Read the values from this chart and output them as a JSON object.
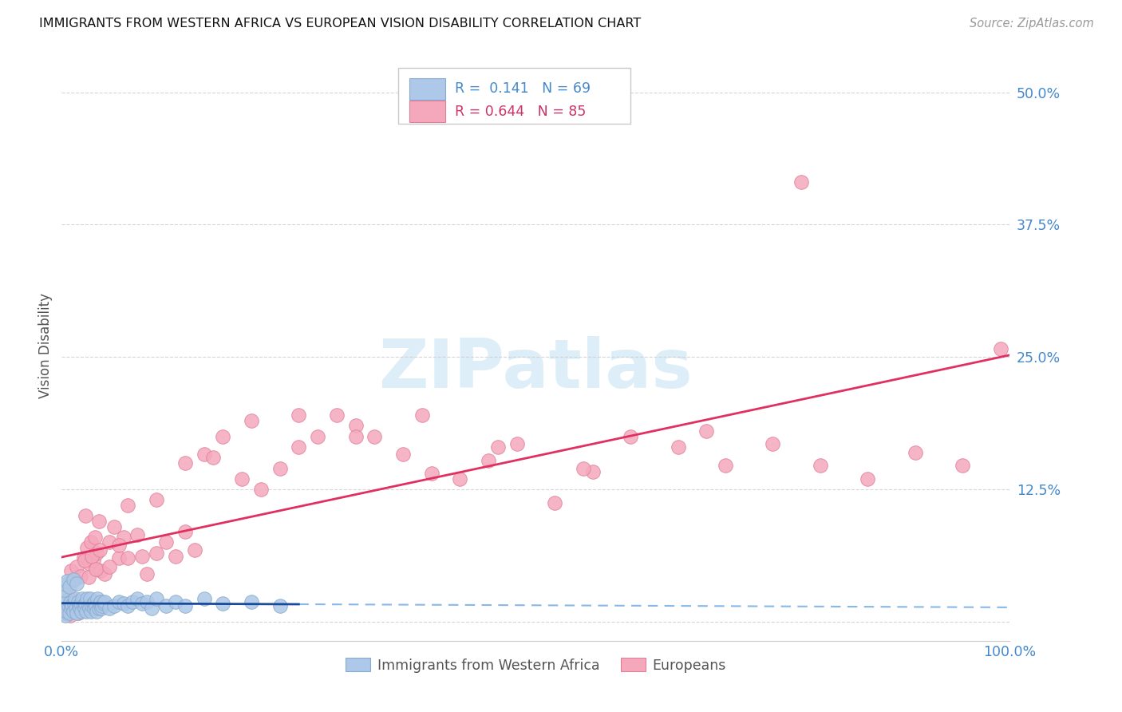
{
  "title": "IMMIGRANTS FROM WESTERN AFRICA VS EUROPEAN VISION DISABILITY CORRELATION CHART",
  "source": "Source: ZipAtlas.com",
  "ylabel": "Vision Disability",
  "xlim": [
    0.0,
    1.0
  ],
  "ylim": [
    -0.018,
    0.54
  ],
  "blue_R": 0.141,
  "blue_N": 69,
  "pink_R": 0.644,
  "pink_N": 85,
  "blue_color": "#adc8e8",
  "pink_color": "#f5a8bc",
  "blue_edge_color": "#88aacc",
  "pink_edge_color": "#e08098",
  "blue_line_color": "#1a4a9a",
  "pink_line_color": "#e03060",
  "blue_dashed_color": "#88b8e8",
  "watermark_color": "#ddeef8",
  "blue_x": [
    0.001,
    0.002,
    0.003,
    0.004,
    0.005,
    0.006,
    0.007,
    0.008,
    0.009,
    0.01,
    0.011,
    0.012,
    0.013,
    0.014,
    0.015,
    0.016,
    0.017,
    0.018,
    0.019,
    0.02,
    0.021,
    0.022,
    0.023,
    0.024,
    0.025,
    0.026,
    0.027,
    0.028,
    0.029,
    0.03,
    0.031,
    0.032,
    0.033,
    0.034,
    0.035,
    0.036,
    0.037,
    0.038,
    0.039,
    0.04,
    0.041,
    0.042,
    0.043,
    0.044,
    0.045,
    0.05,
    0.055,
    0.06,
    0.065,
    0.07,
    0.075,
    0.08,
    0.085,
    0.09,
    0.095,
    0.1,
    0.11,
    0.12,
    0.13,
    0.15,
    0.17,
    0.2,
    0.23,
    0.002,
    0.004,
    0.006,
    0.008,
    0.012,
    0.016
  ],
  "blue_y": [
    0.008,
    0.012,
    0.018,
    0.006,
    0.01,
    0.02,
    0.015,
    0.008,
    0.018,
    0.013,
    0.016,
    0.01,
    0.017,
    0.022,
    0.013,
    0.008,
    0.019,
    0.015,
    0.013,
    0.017,
    0.01,
    0.022,
    0.016,
    0.013,
    0.017,
    0.01,
    0.022,
    0.015,
    0.013,
    0.022,
    0.01,
    0.015,
    0.017,
    0.013,
    0.019,
    0.015,
    0.01,
    0.022,
    0.013,
    0.017,
    0.019,
    0.013,
    0.015,
    0.017,
    0.019,
    0.013,
    0.015,
    0.019,
    0.017,
    0.015,
    0.019,
    0.022,
    0.017,
    0.019,
    0.013,
    0.022,
    0.015,
    0.019,
    0.015,
    0.022,
    0.017,
    0.019,
    0.015,
    0.03,
    0.035,
    0.038,
    0.033,
    0.04,
    0.036
  ],
  "pink_x": [
    0.003,
    0.005,
    0.007,
    0.009,
    0.011,
    0.013,
    0.015,
    0.017,
    0.019,
    0.021,
    0.023,
    0.025,
    0.027,
    0.029,
    0.031,
    0.033,
    0.035,
    0.037,
    0.039,
    0.041,
    0.045,
    0.05,
    0.055,
    0.06,
    0.065,
    0.07,
    0.08,
    0.09,
    0.1,
    0.11,
    0.12,
    0.13,
    0.14,
    0.15,
    0.17,
    0.19,
    0.21,
    0.23,
    0.25,
    0.27,
    0.29,
    0.31,
    0.33,
    0.36,
    0.39,
    0.42,
    0.45,
    0.48,
    0.52,
    0.56,
    0.6,
    0.65,
    0.7,
    0.75,
    0.8,
    0.85,
    0.9,
    0.95,
    0.99,
    0.004,
    0.007,
    0.01,
    0.013,
    0.016,
    0.02,
    0.024,
    0.028,
    0.032,
    0.036,
    0.04,
    0.05,
    0.06,
    0.07,
    0.085,
    0.1,
    0.13,
    0.16,
    0.2,
    0.25,
    0.31,
    0.38,
    0.46,
    0.55,
    0.68,
    0.78
  ],
  "pink_y": [
    0.008,
    0.012,
    0.018,
    0.006,
    0.01,
    0.02,
    0.015,
    0.008,
    0.018,
    0.013,
    0.06,
    0.1,
    0.07,
    0.055,
    0.075,
    0.058,
    0.08,
    0.065,
    0.095,
    0.048,
    0.045,
    0.075,
    0.09,
    0.06,
    0.08,
    0.11,
    0.082,
    0.045,
    0.065,
    0.075,
    0.062,
    0.085,
    0.068,
    0.158,
    0.175,
    0.135,
    0.125,
    0.145,
    0.165,
    0.175,
    0.195,
    0.185,
    0.175,
    0.158,
    0.14,
    0.135,
    0.152,
    0.168,
    0.112,
    0.142,
    0.175,
    0.165,
    0.148,
    0.168,
    0.148,
    0.135,
    0.16,
    0.148,
    0.258,
    0.03,
    0.035,
    0.048,
    0.04,
    0.052,
    0.043,
    0.058,
    0.042,
    0.062,
    0.05,
    0.068,
    0.052,
    0.072,
    0.06,
    0.062,
    0.115,
    0.15,
    0.155,
    0.19,
    0.195,
    0.175,
    0.195,
    0.165,
    0.145,
    0.18,
    0.415
  ]
}
